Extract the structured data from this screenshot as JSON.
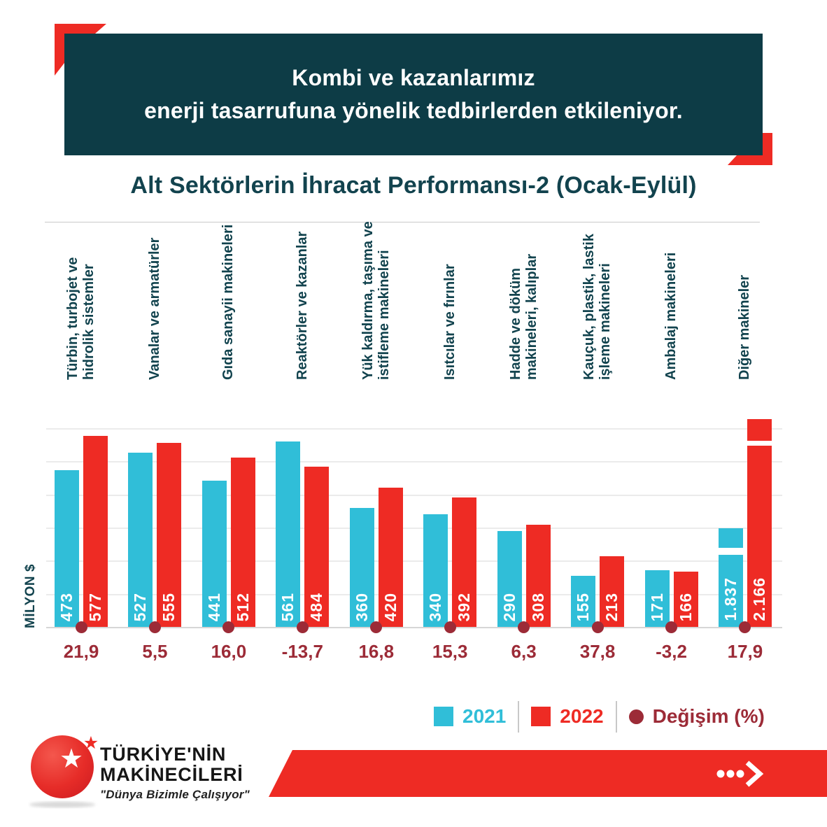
{
  "banner": {
    "line1": "Kombi ve kazanlarımız",
    "line2": "enerji tasarrufuna yönelik tedbirlerden etkileniyor."
  },
  "section": {
    "title": "Alt Sektörlerin İhracat Performansı-2 (Ocak-Eylül)",
    "y_axis_label": "MİLYON $"
  },
  "chart_data": {
    "type": "bar",
    "unit": "MİLYON $ (million USD)",
    "categories": [
      "Türbin, turbojet ve\nhidrolik sistemler",
      "Vanalar ve armatürler",
      "Gıda sanayii makineleri",
      "Reaktörler ve kazanlar",
      "Yük kaldırma, taşıma ve\nistifleme makineleri",
      "Isıtcılar ve fırınlar",
      "Hadde ve döküm\nmakineleri, kalıplar",
      "Kauçuk, plastik, lastik\nişleme makineleri",
      "Ambalaj makineleri",
      "Diğer makineler"
    ],
    "series": [
      {
        "name": "2021",
        "color": "#30bed8",
        "values": [
          473,
          527,
          441,
          561,
          360,
          340,
          290,
          155,
          171,
          1837
        ],
        "value_labels": [
          "473",
          "527",
          "441",
          "561",
          "360",
          "340",
          "290",
          "155",
          "171",
          "1.837"
        ]
      },
      {
        "name": "2022",
        "color": "#ee2b24",
        "values": [
          577,
          555,
          512,
          484,
          420,
          392,
          308,
          213,
          166,
          2166
        ],
        "value_labels": [
          "577",
          "555",
          "512",
          "484",
          "420",
          "392",
          "308",
          "213",
          "166",
          "2.166"
        ]
      }
    ],
    "change_series": {
      "name": "Değişim (%)",
      "color": "#9c2b37",
      "values": [
        21.9,
        5.5,
        16.0,
        -13.7,
        16.8,
        15.3,
        6.3,
        37.8,
        -3.2,
        17.9
      ],
      "labels": [
        "21,9",
        "5,5",
        "16,0",
        "-13,7",
        "16,8",
        "15,3",
        "6,3",
        "37,8",
        "-3,2",
        "17,9"
      ]
    },
    "ylabel": "MİLYON $",
    "ylim": [
      0,
      620
    ],
    "gridline_values": [
      0,
      100,
      200,
      300,
      400,
      500,
      600
    ],
    "grid": true,
    "legend_position": "bottom",
    "axis_break": {
      "category_index": 9,
      "note": "last pair of bars truncated with white break marks"
    }
  },
  "legend": {
    "items": [
      {
        "label": "2021",
        "color": "#30bed8",
        "shape": "square"
      },
      {
        "label": "2022",
        "color": "#ee2b24",
        "shape": "square"
      },
      {
        "label": "Değişim (%)",
        "color": "#9c2b37",
        "shape": "circle"
      }
    ]
  },
  "logo": {
    "name_line1": "TÜRKİYE'NİN",
    "name_line2": "MAKİNECİLERİ",
    "slogan": "\"Dünya Bizimle Çalışıyor\"",
    "star_glyph": "★"
  },
  "colors": {
    "banner_teal": "#0d3c46",
    "accent_red": "#ee2b24",
    "cyan_2021": "#30bed8",
    "red_2022": "#ee2b24",
    "maroon_change": "#9c2b37"
  }
}
